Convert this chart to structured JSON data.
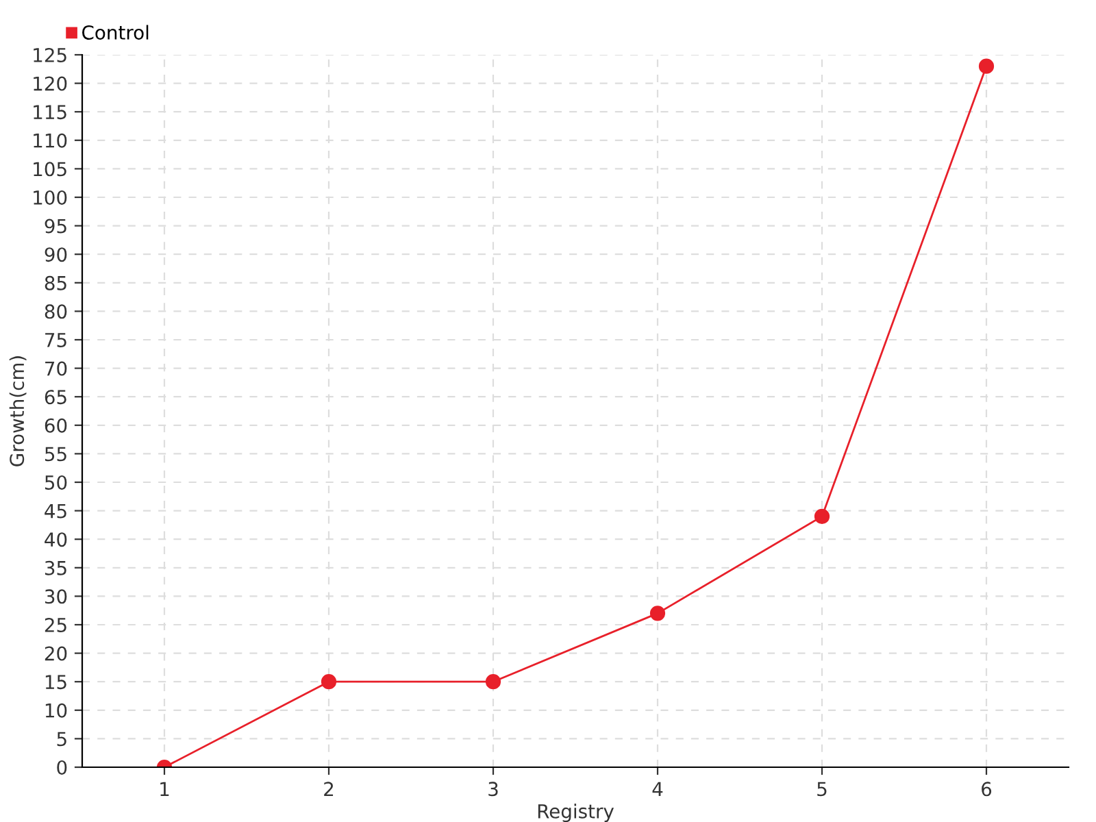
{
  "chart_data": {
    "type": "line",
    "xlabel": "Registry",
    "ylabel": "Growth(cm)",
    "x": [
      1,
      2,
      3,
      4,
      5,
      6
    ],
    "series": [
      {
        "name": "Control",
        "color": "#e8202a",
        "values": [
          0,
          15,
          15,
          27,
          44,
          123
        ]
      }
    ],
    "xlim": [
      0.5,
      6.5
    ],
    "xticks": [
      1,
      2,
      3,
      4,
      5,
      6
    ],
    "ylim": [
      0,
      125
    ],
    "yticks": [
      0,
      5,
      10,
      15,
      20,
      25,
      30,
      35,
      40,
      45,
      50,
      55,
      60,
      65,
      70,
      75,
      80,
      85,
      90,
      95,
      100,
      105,
      110,
      115,
      120,
      125
    ],
    "grid": true,
    "legend": "top left",
    "marker": "circle",
    "line_style": "solid"
  }
}
